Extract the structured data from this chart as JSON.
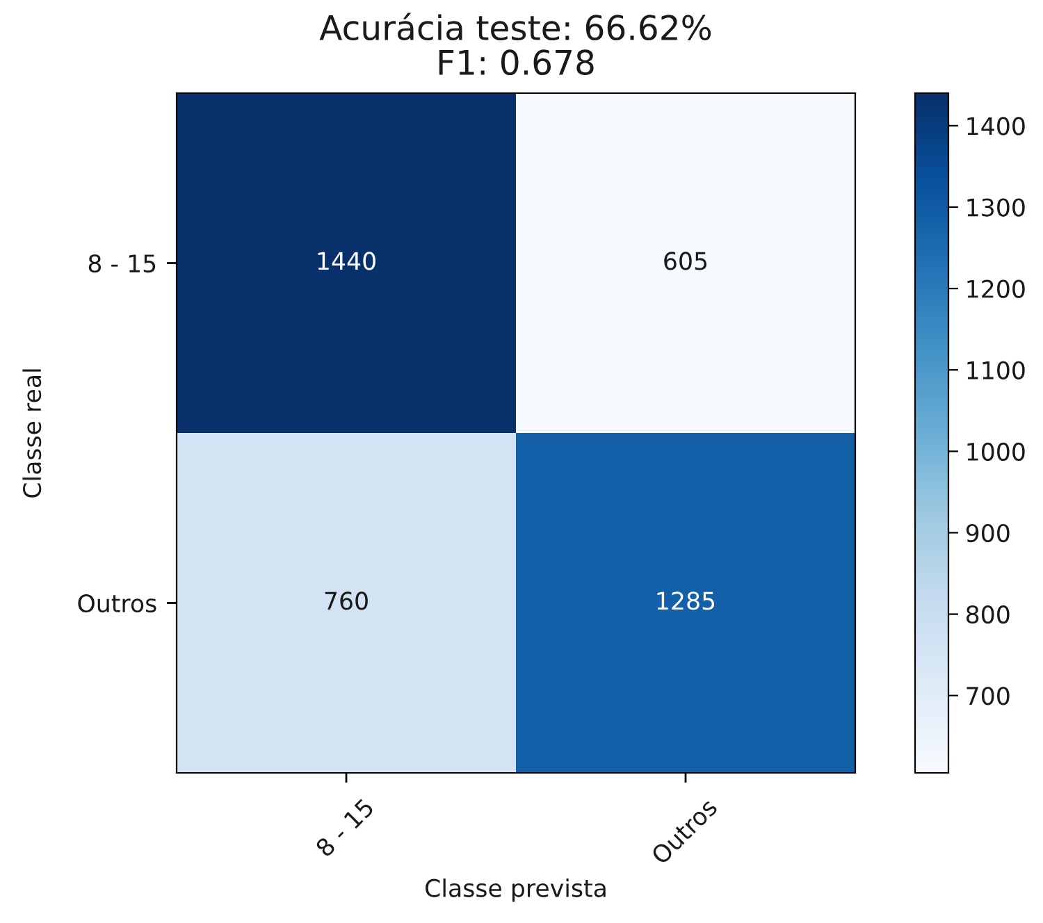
{
  "chart_data": {
    "type": "heatmap",
    "title": "Acurácia teste: 66.62%",
    "subtitle": "F1: 0.678",
    "xlabel": "Classe prevista",
    "ylabel": "Classe real",
    "categories": [
      "8 - 15",
      "Outros"
    ],
    "y_categories": [
      "8 - 15",
      "Outros"
    ],
    "cells": [
      [
        1440,
        605
      ],
      [
        760,
        1285
      ]
    ],
    "clim": [
      605,
      1440
    ],
    "cticks": [
      700,
      800,
      900,
      1000,
      1100,
      1200,
      1300,
      1400
    ],
    "data_labels": true
  }
}
